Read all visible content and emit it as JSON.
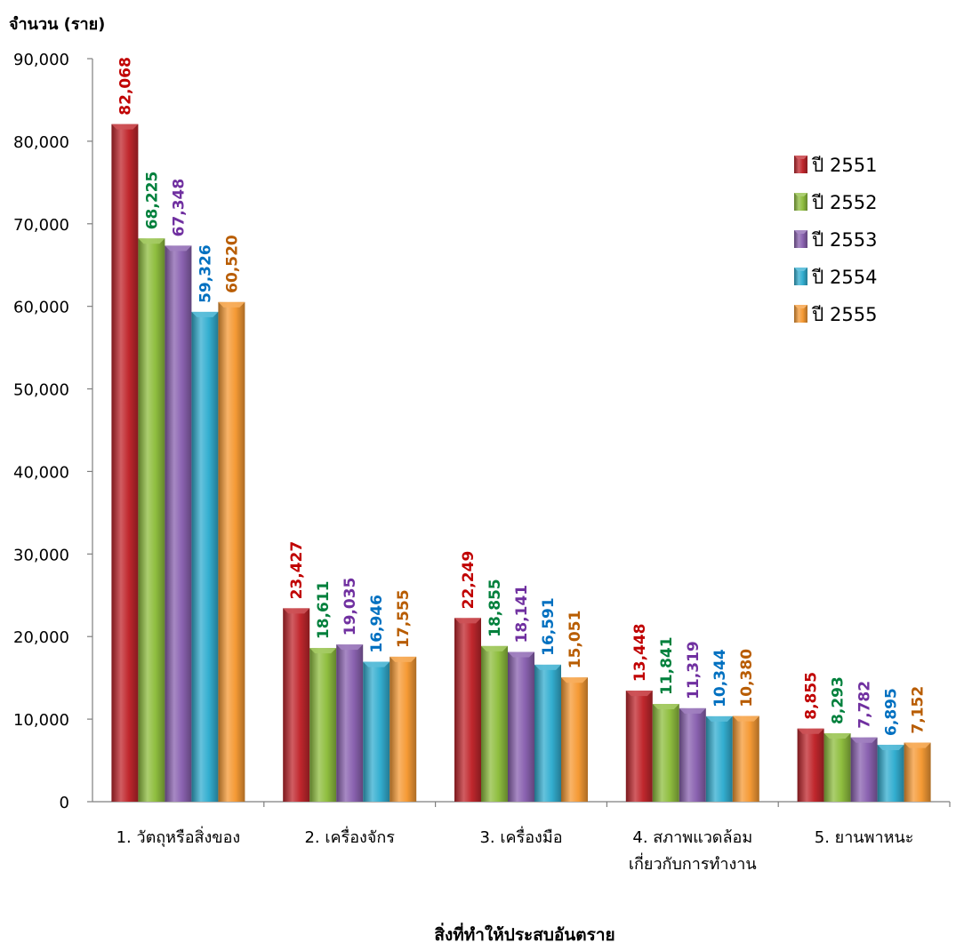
{
  "chart_data": {
    "type": "bar",
    "title": "",
    "ylabel": "จำนวน (ราย)",
    "xlabel": "สิ่งที่ทำให้ประสบอันตราย",
    "ylim": [
      0,
      90000
    ],
    "yticks": [
      0,
      10000,
      20000,
      30000,
      40000,
      50000,
      60000,
      70000,
      80000,
      90000
    ],
    "ytick_labels": [
      "0",
      "10,000",
      "20,000",
      "30,000",
      "40,000",
      "50,000",
      "60,000",
      "70,000",
      "80,000",
      "90,000"
    ],
    "categories": [
      [
        "1.  วัตถุหรือสิ่งของ"
      ],
      [
        "2.  เครื่องจักร"
      ],
      [
        "3.  เครื่องมือ"
      ],
      [
        "4. สภาพแวดล้อม",
        "เกี่ยวกับการทำงาน"
      ],
      [
        "5.  ยานพาหนะ"
      ]
    ],
    "series": [
      {
        "name": "ปี 2551",
        "color": "#c0272d",
        "label_color": "#c00000",
        "values": [
          82068,
          23427,
          22249,
          13448,
          8855
        ],
        "labels": [
          "82,068",
          "23,427",
          "22,249",
          "13,448",
          "8,855"
        ]
      },
      {
        "name": "ปี 2552",
        "color": "#8fbe3f",
        "label_color": "#00803c",
        "values": [
          68225,
          18611,
          18855,
          11841,
          8293
        ],
        "labels": [
          "68,225",
          "18,611",
          "18,855",
          "11,841",
          "8,293"
        ]
      },
      {
        "name": "ปี 2553",
        "color": "#8a62b0",
        "label_color": "#7030a0",
        "values": [
          67348,
          19035,
          18141,
          11319,
          7782
        ],
        "labels": [
          "67,348",
          "19,035",
          "18,141",
          "11,319",
          "7,782"
        ]
      },
      {
        "name": "ปี 2554",
        "color": "#33aed0",
        "label_color": "#0070c0",
        "values": [
          59326,
          16946,
          16591,
          10344,
          6895
        ],
        "labels": [
          "59,326",
          "16,946",
          "16,591",
          "10,344",
          "6,895"
        ]
      },
      {
        "name": "ปี 2555",
        "color": "#f59a35",
        "label_color": "#b85c00",
        "values": [
          60520,
          17555,
          15051,
          10380,
          7152
        ],
        "labels": [
          "60,520",
          "17,555",
          "15,051",
          "10,380",
          "7,152"
        ]
      }
    ],
    "grid": false,
    "legend_position": "right"
  }
}
